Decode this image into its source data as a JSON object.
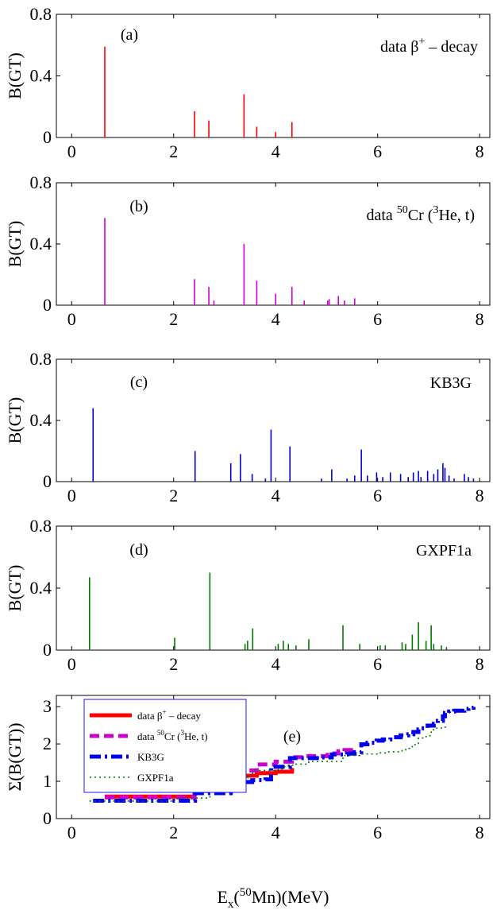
{
  "chart_data": [
    {
      "type": "bar",
      "panel_label": "(a)",
      "label_main": "data β",
      "label_sup": "+",
      "label_tail": " – decay",
      "ylabel": "B(GT)",
      "xlim": [
        -0.3,
        8.2
      ],
      "ylim": [
        0,
        0.8
      ],
      "xticks": [
        0,
        2,
        4,
        6,
        8
      ],
      "yticks": [
        0,
        0.4,
        0.8
      ],
      "color": "#ff0000",
      "x": [
        0.65,
        2.41,
        2.69,
        3.38,
        3.63,
        4.0,
        4.32
      ],
      "values": [
        0.59,
        0.17,
        0.11,
        0.28,
        0.07,
        0.035,
        0.1
      ]
    },
    {
      "type": "bar",
      "panel_label": "(b)",
      "label_main": "data ",
      "label_sup": "50",
      "label_mid": "Cr (",
      "label_sup2": "3",
      "label_tail": "He, t)",
      "ylabel": "B(GT)",
      "xlim": [
        -0.3,
        8.2
      ],
      "ylim": [
        0,
        0.8
      ],
      "xticks": [
        0,
        2,
        4,
        6,
        8
      ],
      "yticks": [
        0,
        0.4,
        0.8
      ],
      "color": "#cc00cc",
      "x": [
        0.65,
        2.41,
        2.69,
        2.79,
        3.38,
        3.63,
        4.0,
        4.32,
        4.56,
        5.02,
        5.05,
        5.23,
        5.35,
        5.55
      ],
      "values": [
        0.57,
        0.17,
        0.12,
        0.03,
        0.4,
        0.16,
        0.075,
        0.12,
        0.03,
        0.03,
        0.04,
        0.06,
        0.03,
        0.045
      ]
    },
    {
      "type": "bar",
      "panel_label": "(c)",
      "label_main": "KB3G",
      "ylabel": "B(GT)",
      "xlim": [
        -0.3,
        8.2
      ],
      "ylim": [
        0,
        0.8
      ],
      "xticks": [
        0,
        2,
        4,
        6,
        8
      ],
      "yticks": [
        0,
        0.4,
        0.8
      ],
      "color": "#0000cc",
      "x": [
        0.42,
        2.42,
        3.12,
        3.31,
        3.54,
        3.8,
        3.91,
        4.28,
        4.9,
        5.1,
        5.4,
        5.55,
        5.68,
        5.8,
        5.98,
        6.1,
        6.25,
        6.45,
        6.6,
        6.7,
        6.8,
        6.85,
        6.98,
        7.1,
        7.18,
        7.28,
        7.32,
        7.4,
        7.5,
        7.7,
        7.78,
        7.88
      ],
      "values": [
        0.48,
        0.2,
        0.12,
        0.18,
        0.05,
        0.02,
        0.34,
        0.23,
        0.02,
        0.08,
        0.02,
        0.04,
        0.21,
        0.04,
        0.06,
        0.03,
        0.06,
        0.05,
        0.03,
        0.06,
        0.07,
        0.03,
        0.07,
        0.05,
        0.08,
        0.12,
        0.09,
        0.04,
        0.02,
        0.05,
        0.03,
        0.02
      ]
    },
    {
      "type": "bar",
      "panel_label": "(d)",
      "label_main": "GXPF1a",
      "ylabel": "B(GT)",
      "xlim": [
        -0.3,
        8.2
      ],
      "ylim": [
        0,
        0.8
      ],
      "xticks": [
        0,
        2,
        4,
        6,
        8
      ],
      "yticks": [
        0,
        0.4,
        0.8
      ],
      "color": "#007700",
      "x": [
        0.35,
        2.02,
        2.71,
        3.4,
        3.45,
        3.55,
        4.05,
        4.15,
        4.25,
        4.4,
        4.65,
        5.32,
        5.65,
        6.05,
        6.15,
        6.48,
        6.55,
        6.68,
        6.8,
        6.95,
        7.05,
        7.1,
        7.25,
        7.35
      ],
      "values": [
        0.47,
        0.08,
        0.5,
        0.04,
        0.06,
        0.14,
        0.04,
        0.06,
        0.04,
        0.03,
        0.07,
        0.16,
        0.04,
        0.03,
        0.03,
        0.05,
        0.04,
        0.1,
        0.18,
        0.06,
        0.16,
        0.04,
        0.03,
        0.02
      ]
    },
    {
      "type": "line",
      "panel_label": "(e)",
      "ylabel": "Σ(B(GT))",
      "xlabel_main": "E",
      "xlabel_sub": "x",
      "xlabel_mid": "(",
      "xlabel_sup": "50",
      "xlabel_tail": "Mn)(MeV)",
      "xlim": [
        -0.3,
        8.2
      ],
      "ylim": [
        0,
        3.3
      ],
      "xticks": [
        0,
        2,
        4,
        6,
        8
      ],
      "yticks": [
        0,
        1,
        2,
        3
      ],
      "legend_placement": "top-left",
      "series": [
        {
          "name": "data β+ – decay",
          "legend_main": "data β",
          "legend_sup": "+",
          "legend_tail": " – decay",
          "color": "#ff0000",
          "style": "solid",
          "x": [
            0.65,
            2.41,
            2.69,
            3.38,
            3.63,
            4.0,
            4.32
          ],
          "cumulative": [
            0.59,
            0.76,
            0.87,
            1.15,
            1.22,
            1.255,
            1.355
          ]
        },
        {
          "name": "data 50Cr (3He, t)",
          "legend_main": "data ",
          "legend_sup": "50",
          "legend_mid": "Cr (",
          "legend_sup2": "3",
          "legend_tail": "He, t)",
          "color": "#cc00cc",
          "style": "dashed",
          "x": [
            0.65,
            2.41,
            2.69,
            2.79,
            3.38,
            3.63,
            4.0,
            4.32,
            4.56,
            5.02,
            5.05,
            5.23,
            5.35,
            5.55
          ],
          "cumulative": [
            0.57,
            0.74,
            0.86,
            0.89,
            1.29,
            1.45,
            1.525,
            1.645,
            1.675,
            1.705,
            1.745,
            1.805,
            1.835,
            1.88
          ]
        },
        {
          "name": "KB3G",
          "legend_main": "KB3G",
          "color": "#0000ee",
          "style": "dashdot",
          "x": [
            0.42,
            2.42,
            3.12,
            3.31,
            3.54,
            3.8,
            3.91,
            4.28,
            4.9,
            5.1,
            5.4,
            5.55,
            5.68,
            5.8,
            5.98,
            6.1,
            6.25,
            6.45,
            6.6,
            6.7,
            6.8,
            6.85,
            6.98,
            7.1,
            7.18,
            7.28,
            7.32,
            7.4,
            7.5,
            7.7,
            7.78,
            7.88
          ],
          "cumulative": [
            0.48,
            0.68,
            0.8,
            0.98,
            1.03,
            1.05,
            1.39,
            1.62,
            1.64,
            1.72,
            1.74,
            1.78,
            1.99,
            2.03,
            2.09,
            2.12,
            2.18,
            2.23,
            2.26,
            2.32,
            2.39,
            2.42,
            2.49,
            2.54,
            2.62,
            2.74,
            2.83,
            2.87,
            2.89,
            2.94,
            2.97,
            2.99
          ]
        },
        {
          "name": "GXPF1a",
          "legend_main": "GXPF1a",
          "color": "#007700",
          "style": "dotted",
          "x": [
            0.35,
            2.02,
            2.71,
            3.4,
            3.45,
            3.55,
            4.05,
            4.15,
            4.25,
            4.4,
            4.65,
            5.32,
            5.65,
            6.05,
            6.15,
            6.48,
            6.55,
            6.68,
            6.8,
            6.95,
            7.05,
            7.1,
            7.25,
            7.35
          ],
          "cumulative": [
            0.47,
            0.55,
            1.05,
            1.09,
            1.15,
            1.29,
            1.33,
            1.39,
            1.43,
            1.46,
            1.53,
            1.69,
            1.73,
            1.76,
            1.79,
            1.84,
            1.88,
            1.98,
            2.16,
            2.22,
            2.38,
            2.42,
            2.45,
            2.47
          ]
        }
      ]
    }
  ]
}
